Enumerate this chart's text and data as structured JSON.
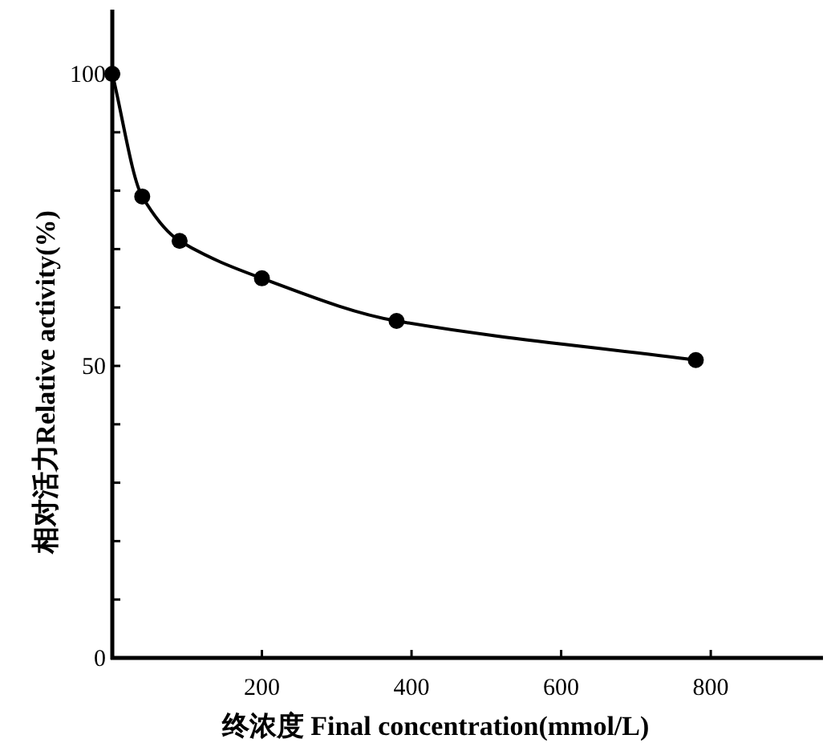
{
  "chart_data": {
    "type": "line",
    "xlabel": "终浓度 Final concentration(mmol/L)",
    "ylabel": "相对活力Relative activity(%)",
    "x": [
      0,
      40,
      90,
      200,
      380,
      780
    ],
    "series": [
      {
        "color": "#000000",
        "values": [
          100,
          79,
          71.4,
          65,
          57.7,
          51
        ]
      }
    ],
    "xlim": [
      0,
      950
    ],
    "ylim": [
      0,
      111
    ],
    "xticks": [
      200,
      400,
      600,
      800
    ],
    "yticks": [
      0,
      {
        "value": 10,
        "label": null
      },
      {
        "value": 20,
        "label": null
      },
      {
        "value": 30,
        "label": null
      },
      {
        "value": 40,
        "label": null
      },
      50,
      {
        "value": 60,
        "label": null
      },
      {
        "value": 70,
        "label": null
      },
      {
        "value": 80,
        "label": null
      },
      {
        "value": 90,
        "label": null
      },
      100
    ],
    "marker": "circle",
    "line_style": "solid",
    "grid": false
  }
}
